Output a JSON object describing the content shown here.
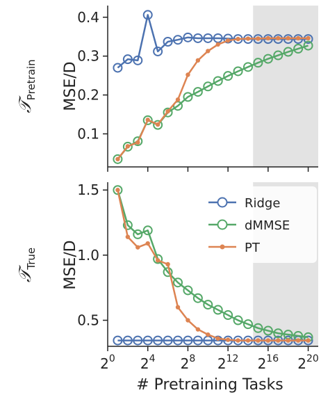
{
  "chart_data": [
    {
      "type": "line",
      "row_label": {
        "symbol": "𝒯",
        "subscript": "Pretrain"
      },
      "ylabel": "MSE/D",
      "x_log2": [
        1,
        2,
        3,
        4,
        5,
        6,
        7,
        8,
        9,
        10,
        11,
        12,
        13,
        14,
        15,
        16,
        17,
        18,
        19,
        20
      ],
      "ylim": [
        0.015,
        0.43
      ],
      "yticks": [
        0.1,
        0.2,
        0.3,
        0.4
      ],
      "ytick_labels": [
        "0.1",
        "0.2",
        "0.3",
        "0.4"
      ],
      "shaded_from_log2": 14.5,
      "series": [
        {
          "name": "Ridge",
          "color": "#4c72b0",
          "marker": "open-circle",
          "values": [
            0.27,
            0.292,
            0.289,
            0.406,
            0.312,
            0.337,
            0.342,
            0.348,
            0.346,
            0.346,
            0.346,
            0.345,
            0.344,
            0.344,
            0.344,
            0.344,
            0.344,
            0.344,
            0.344,
            0.344
          ]
        },
        {
          "name": "dMMSE",
          "color": "#55a868",
          "marker": "open-circle",
          "values": [
            0.035,
            0.067,
            0.081,
            0.135,
            0.123,
            0.155,
            0.172,
            0.195,
            0.208,
            0.222,
            0.236,
            0.249,
            0.261,
            0.272,
            0.283,
            0.293,
            0.302,
            0.311,
            0.319,
            0.327
          ]
        },
        {
          "name": "PT",
          "color": "#dd8452",
          "marker": "dot",
          "values": [
            0.035,
            0.068,
            0.078,
            0.136,
            0.124,
            0.158,
            0.188,
            0.252,
            0.289,
            0.313,
            0.33,
            0.34,
            0.344,
            0.345,
            0.345,
            0.346,
            0.346,
            0.346,
            0.346,
            0.346
          ]
        }
      ]
    },
    {
      "type": "line",
      "row_label": {
        "symbol": "𝒯",
        "subscript": "True"
      },
      "ylabel": "MSE/D",
      "xlabel": "# Pretraining Tasks",
      "x_log2": [
        1,
        2,
        3,
        4,
        5,
        6,
        7,
        8,
        9,
        10,
        11,
        12,
        13,
        14,
        15,
        16,
        17,
        18,
        19,
        20
      ],
      "ylim": [
        0.3,
        1.56
      ],
      "yticks": [
        0.5,
        1.0,
        1.5
      ],
      "ytick_labels": [
        "0.5",
        "1.0",
        "1.5"
      ],
      "xticks_log2": [
        0,
        4,
        8,
        12,
        16,
        20
      ],
      "xtick_base": "2",
      "xtick_exponents": [
        "0",
        "4",
        "8",
        "12",
        "16",
        "20"
      ],
      "shaded_from_log2": 14.5,
      "legend": {
        "position": "upper right",
        "entries": [
          "Ridge",
          "dMMSE",
          "PT"
        ]
      },
      "series": [
        {
          "name": "Ridge",
          "color": "#4c72b0",
          "marker": "open-circle",
          "values": [
            0.345,
            0.345,
            0.345,
            0.345,
            0.345,
            0.345,
            0.345,
            0.345,
            0.345,
            0.345,
            0.345,
            0.345,
            0.345,
            0.345,
            0.345,
            0.345,
            0.345,
            0.345,
            0.345,
            0.345
          ]
        },
        {
          "name": "dMMSE",
          "color": "#55a868",
          "marker": "open-circle",
          "values": [
            1.5,
            1.23,
            1.16,
            1.19,
            0.97,
            0.87,
            0.79,
            0.73,
            0.67,
            0.62,
            0.58,
            0.54,
            0.5,
            0.47,
            0.44,
            0.42,
            0.4,
            0.39,
            0.38,
            0.37
          ]
        },
        {
          "name": "PT",
          "color": "#dd8452",
          "marker": "dot",
          "values": [
            1.5,
            1.14,
            1.06,
            1.09,
            0.96,
            0.93,
            0.6,
            0.5,
            0.43,
            0.39,
            0.36,
            0.35,
            0.345,
            0.345,
            0.345,
            0.345,
            0.345,
            0.345,
            0.345,
            0.345
          ]
        }
      ]
    }
  ]
}
